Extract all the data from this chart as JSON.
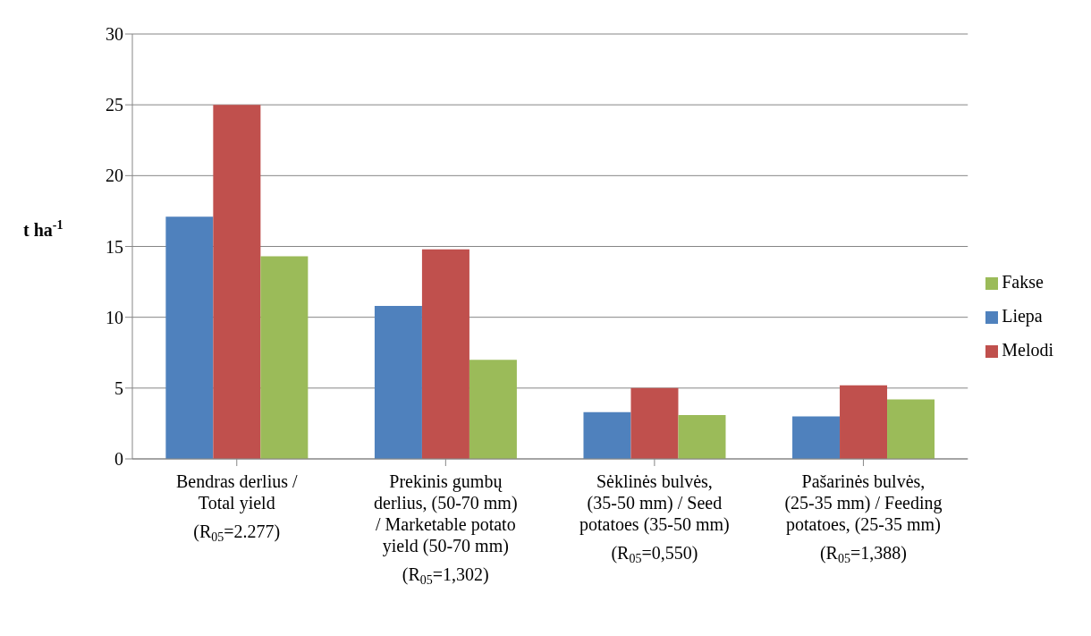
{
  "chart_data": {
    "type": "bar",
    "ylabel": "t ha$^{-1}$",
    "categories": [
      "Bendras derlius / Total yield",
      "Prekinis gumbų derlius, (50-70 mm) / Marketable potato yield (50-70 mm)",
      "Sėklinės bulvės, (35-50 mm) / Seed potatoes (35-50 mm)",
      "Pašarinės bulvės, (25-35 mm) / Feeding potatoes, (25-35 mm)"
    ],
    "series": [
      {
        "name": "Liepa",
        "color": "#4f81bd",
        "values": [
          17.1,
          10.8,
          3.3,
          3.0
        ]
      },
      {
        "name": "Melodi",
        "color": "#c0504d",
        "values": [
          25.0,
          14.8,
          5.0,
          5.2
        ]
      },
      {
        "name": "Fakse",
        "color": "#9bbb59",
        "values": [
          14.3,
          7.0,
          3.1,
          4.2
        ]
      }
    ],
    "annotations": [
      "(R$_{05}$=2.277)",
      "(R$_{05}$=1,302)",
      "(R$_{05}$=0,550)",
      "(R$_{05}$=1,388)"
    ],
    "ylim": [
      0,
      30
    ],
    "yticks": [
      0,
      5,
      10,
      15,
      20,
      25,
      30
    ],
    "grid": "y",
    "legend": "right"
  }
}
